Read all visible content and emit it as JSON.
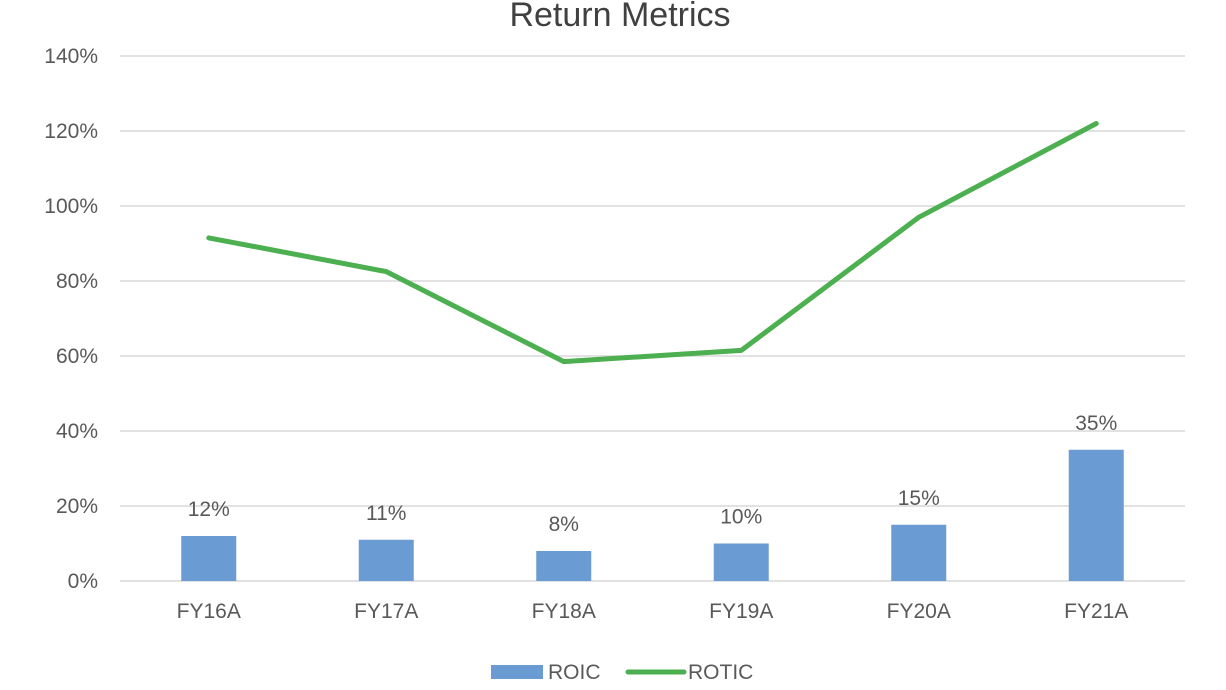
{
  "chart_data": {
    "type": "bar+line",
    "title": "Return Metrics",
    "categories": [
      "FY16A",
      "FY17A",
      "FY18A",
      "FY19A",
      "FY20A",
      "FY21A"
    ],
    "series": [
      {
        "name": "ROIC",
        "type": "bar",
        "values": [
          12,
          11,
          8,
          10,
          15,
          35
        ],
        "labels": [
          "12%",
          "11%",
          "8%",
          "10%",
          "15%",
          "35%"
        ],
        "color": "#6a9bd3"
      },
      {
        "name": "ROTIC",
        "type": "line",
        "values": [
          91.5,
          82.5,
          58.5,
          61.5,
          97,
          122
        ],
        "color": "#4caf50"
      }
    ],
    "y_ticks": [
      "0%",
      "20%",
      "40%",
      "60%",
      "80%",
      "100%",
      "120%",
      "140%"
    ],
    "ylim": [
      0,
      140
    ],
    "grid": true,
    "legend": "bottom"
  }
}
